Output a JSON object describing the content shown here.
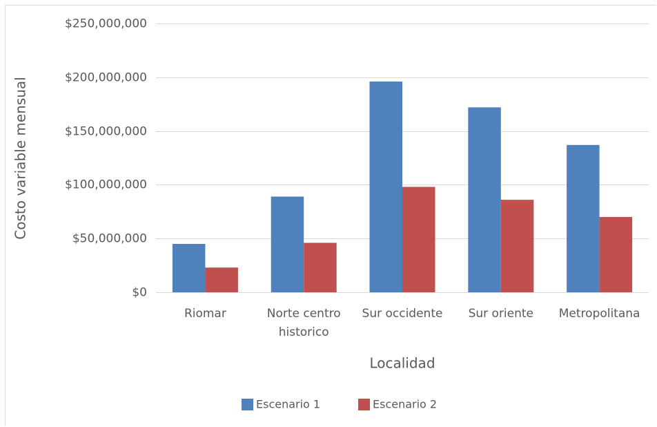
{
  "chart_data": {
    "type": "bar",
    "title": "",
    "xlabel": "Localidad",
    "ylabel": "Costo variable mensual",
    "categories": [
      [
        "Riomar"
      ],
      [
        "Norte centro",
        "historico"
      ],
      [
        "Sur occidente"
      ],
      [
        "Sur oriente"
      ],
      [
        "Metropolitana"
      ]
    ],
    "series": [
      {
        "name": "Escenario 1",
        "color": "#4f81bd",
        "values": [
          45000000,
          89000000,
          196000000,
          172000000,
          137000000
        ]
      },
      {
        "name": "Escenario 2",
        "color": "#c0504d",
        "values": [
          23000000,
          46000000,
          98000000,
          86000000,
          70000000
        ]
      }
    ],
    "ylim": [
      0,
      250000000
    ],
    "yticks": [
      0,
      50000000,
      100000000,
      150000000,
      200000000,
      250000000
    ],
    "ytick_labels": [
      "$0",
      "$50,000,000",
      "$100,000,000",
      "$150,000,000",
      "$200,000,000",
      "$250,000,000"
    ],
    "grid": true,
    "gridline_color": "#d9d9d9",
    "legend": "bottom"
  }
}
